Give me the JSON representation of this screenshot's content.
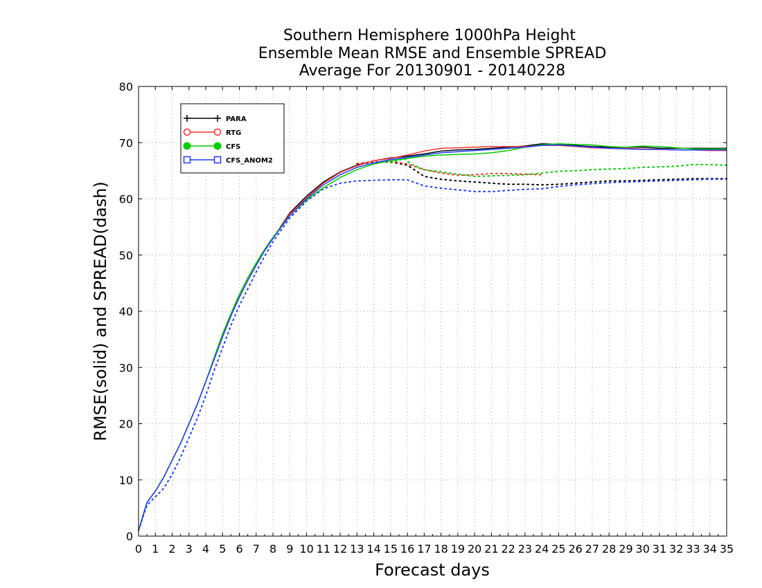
{
  "chart_data": {
    "type": "line",
    "title_lines": [
      "Southern Hemisphere 1000hPa Height",
      "Ensemble Mean RMSE and Ensemble SPREAD",
      "Average For 20130901 - 20140228"
    ],
    "xlabel": "Forecast days",
    "ylabel": "RMSE(solid) and SPREAD(dash)",
    "xlim": [
      0,
      35
    ],
    "ylim": [
      0,
      80
    ],
    "x_ticks": [
      "0",
      "1",
      "2",
      "3",
      "4",
      "5",
      "6",
      "7",
      "8",
      "9",
      "10",
      "11",
      "12",
      "13",
      "14",
      "15",
      "16",
      "17",
      "18",
      "19",
      "20",
      "21",
      "22",
      "23",
      "24",
      "25",
      "26",
      "27",
      "28",
      "29",
      "30",
      "31",
      "32",
      "33",
      "34",
      "35"
    ],
    "y_ticks": [
      "0",
      "10",
      "20",
      "30",
      "40",
      "50",
      "60",
      "70",
      "80"
    ],
    "grid": true,
    "legend_position": "top-left",
    "series": [
      {
        "name": "PARA",
        "color": "#000000",
        "marker": "plus",
        "rmse": [
          [
            0,
            1
          ],
          [
            0.5,
            6
          ],
          [
            1,
            8
          ],
          [
            1.5,
            10.5
          ],
          [
            2,
            13.5
          ],
          [
            2.5,
            16.5
          ],
          [
            3,
            20
          ],
          [
            3.5,
            23.5
          ],
          [
            4,
            27.5
          ],
          [
            4.5,
            31.5
          ],
          [
            5,
            35.5
          ],
          [
            5.5,
            39.2
          ],
          [
            6,
            42.5
          ],
          [
            6.5,
            45.5
          ],
          [
            7,
            48.2
          ],
          [
            7.5,
            50.8
          ],
          [
            8,
            53
          ],
          [
            9,
            57.5
          ],
          [
            10,
            60.5
          ],
          [
            11,
            63
          ],
          [
            12,
            64.8
          ],
          [
            13,
            66
          ],
          [
            14,
            66.8
          ],
          [
            15,
            67.3
          ],
          [
            16,
            67.6
          ],
          [
            17,
            68
          ],
          [
            18,
            68.5
          ],
          [
            19,
            68.7
          ],
          [
            20,
            68.8
          ],
          [
            21,
            69
          ],
          [
            22,
            69.2
          ],
          [
            23,
            69.4
          ],
          [
            24,
            69.8
          ],
          [
            25,
            69.7
          ],
          [
            26,
            69.5
          ],
          [
            27,
            69.3
          ],
          [
            28,
            69.2
          ],
          [
            29,
            69.2
          ],
          [
            30,
            69.2
          ],
          [
            31,
            69
          ],
          [
            32,
            69
          ],
          [
            33,
            69
          ],
          [
            34,
            69
          ],
          [
            35,
            69
          ]
        ],
        "spread": [
          [
            13,
            66.2
          ],
          [
            14,
            66.5
          ],
          [
            15,
            66.6
          ],
          [
            16,
            66
          ],
          [
            17,
            64
          ],
          [
            18,
            63.5
          ],
          [
            19,
            63.2
          ],
          [
            20,
            63
          ],
          [
            21,
            62.8
          ],
          [
            22,
            62.6
          ],
          [
            23,
            62.6
          ],
          [
            24,
            62.5
          ],
          [
            25,
            62.6
          ],
          [
            26,
            62.8
          ],
          [
            27,
            63
          ],
          [
            28,
            63.2
          ],
          [
            29,
            63.2
          ],
          [
            30,
            63.3
          ],
          [
            31,
            63.4
          ],
          [
            32,
            63.5
          ],
          [
            33,
            63.6
          ],
          [
            34,
            63.6
          ],
          [
            35,
            63.6
          ]
        ]
      },
      {
        "name": "RTG",
        "color": "#ff3030",
        "marker": "open-circle",
        "rmse": [
          [
            0,
            1
          ],
          [
            0.5,
            6
          ],
          [
            1,
            8
          ],
          [
            1.5,
            10.5
          ],
          [
            2,
            13.5
          ],
          [
            2.5,
            16.5
          ],
          [
            3,
            20
          ],
          [
            3.5,
            23.5
          ],
          [
            4,
            27.5
          ],
          [
            4.5,
            31.5
          ],
          [
            5,
            35.5
          ],
          [
            5.5,
            39.2
          ],
          [
            6,
            42.5
          ],
          [
            6.5,
            45.5
          ],
          [
            7,
            48.2
          ],
          [
            7.5,
            50.8
          ],
          [
            8,
            53
          ],
          [
            9,
            57.3
          ],
          [
            10,
            60.2
          ],
          [
            11,
            62.8
          ],
          [
            12,
            64.7
          ],
          [
            13,
            65.9
          ],
          [
            14,
            66.8
          ],
          [
            15,
            67.2
          ],
          [
            16,
            67.8
          ],
          [
            17,
            68.5
          ],
          [
            18,
            69
          ],
          [
            19,
            69.1
          ],
          [
            20,
            69.2
          ],
          [
            21,
            69.3
          ],
          [
            22,
            69.3
          ],
          [
            23,
            69.3
          ],
          [
            24,
            69.5
          ],
          [
            25,
            69.5
          ],
          [
            26,
            69.3
          ],
          [
            27,
            69.1
          ],
          [
            28,
            69
          ],
          [
            29,
            69
          ],
          [
            30,
            68.9
          ],
          [
            31,
            68.8
          ],
          [
            32,
            68.7
          ],
          [
            33,
            68.7
          ],
          [
            34,
            68.6
          ],
          [
            35,
            68.6
          ]
        ],
        "spread": [
          [
            13,
            66.3
          ],
          [
            14,
            66.6
          ],
          [
            15,
            66.7
          ],
          [
            16,
            66.2
          ],
          [
            17,
            65.2
          ],
          [
            18,
            64.6
          ],
          [
            19,
            64.2
          ],
          [
            20,
            64.3
          ],
          [
            21,
            64.5
          ],
          [
            22,
            64.5
          ],
          [
            23,
            64.4
          ],
          [
            24,
            64.3
          ]
        ]
      },
      {
        "name": "CFS",
        "color": "#00cc00",
        "marker": "filled-circle",
        "rmse": [
          [
            0,
            1
          ],
          [
            0.5,
            6
          ],
          [
            1,
            8
          ],
          [
            1.5,
            10.5
          ],
          [
            2,
            13.5
          ],
          [
            2.5,
            16.5
          ],
          [
            3,
            20
          ],
          [
            3.5,
            23.5
          ],
          [
            4,
            27.5
          ],
          [
            4.5,
            31.8
          ],
          [
            5,
            36
          ],
          [
            5.5,
            39.6
          ],
          [
            6,
            43
          ],
          [
            6.5,
            46
          ],
          [
            7,
            48.6
          ],
          [
            7.5,
            51
          ],
          [
            8,
            53.2
          ],
          [
            9,
            57
          ],
          [
            10,
            59.8
          ],
          [
            11,
            62
          ],
          [
            12,
            63.8
          ],
          [
            13,
            65.2
          ],
          [
            14,
            66.2
          ],
          [
            15,
            66.8
          ],
          [
            16,
            67.2
          ],
          [
            17,
            67.6
          ],
          [
            18,
            67.8
          ],
          [
            19,
            67.9
          ],
          [
            20,
            68
          ],
          [
            21,
            68.2
          ],
          [
            22,
            68.6
          ],
          [
            23,
            69.2
          ],
          [
            24,
            69.6
          ],
          [
            25,
            69.8
          ],
          [
            26,
            69.7
          ],
          [
            27,
            69.6
          ],
          [
            28,
            69.3
          ],
          [
            29,
            69.2
          ],
          [
            30,
            69.4
          ],
          [
            31,
            69.3
          ],
          [
            32,
            69.1
          ],
          [
            33,
            68.9
          ],
          [
            34,
            68.9
          ],
          [
            35,
            68.9
          ]
        ],
        "spread": [
          [
            15,
            66.4
          ],
          [
            15.8,
            67.2
          ],
          [
            16.2,
            66.2
          ],
          [
            17,
            65.2
          ],
          [
            18,
            64.8
          ],
          [
            19,
            64.4
          ],
          [
            20,
            64
          ],
          [
            21,
            64.1
          ],
          [
            22,
            64.2
          ],
          [
            23,
            64.3
          ],
          [
            24,
            64.6
          ],
          [
            25,
            64.9
          ],
          [
            26,
            65
          ],
          [
            27,
            65.2
          ],
          [
            28,
            65.3
          ],
          [
            29,
            65.4
          ],
          [
            30,
            65.6
          ],
          [
            31,
            65.7
          ],
          [
            32,
            65.8
          ],
          [
            33,
            66.1
          ],
          [
            34,
            66.1
          ],
          [
            35,
            66
          ]
        ]
      },
      {
        "name": "CFS_ANOM2",
        "color": "#1f3fff",
        "marker": "open-square",
        "rmse": [
          [
            0,
            1
          ],
          [
            0.5,
            6
          ],
          [
            1,
            8
          ],
          [
            1.5,
            10.5
          ],
          [
            2,
            13.5
          ],
          [
            2.5,
            16.5
          ],
          [
            3,
            20
          ],
          [
            3.5,
            23.5
          ],
          [
            4,
            27.5
          ],
          [
            4.5,
            31.5
          ],
          [
            5,
            35.5
          ],
          [
            5.5,
            39.2
          ],
          [
            6,
            42.5
          ],
          [
            6.5,
            45.5
          ],
          [
            7,
            48.2
          ],
          [
            7.5,
            50.8
          ],
          [
            8,
            53
          ],
          [
            9,
            57
          ],
          [
            10,
            60
          ],
          [
            11,
            62.5
          ],
          [
            12,
            64.3
          ],
          [
            13,
            65.6
          ],
          [
            14,
            66.4
          ],
          [
            15,
            67
          ],
          [
            16,
            67.4
          ],
          [
            17,
            67.8
          ],
          [
            18,
            68.2
          ],
          [
            19,
            68.4
          ],
          [
            20,
            68.6
          ],
          [
            21,
            68.8
          ],
          [
            22,
            69
          ],
          [
            23,
            69.2
          ],
          [
            24,
            69.5
          ],
          [
            25,
            69.6
          ],
          [
            26,
            69.4
          ],
          [
            27,
            69.2
          ],
          [
            28,
            69
          ],
          [
            29,
            68.9
          ],
          [
            30,
            68.8
          ],
          [
            31,
            68.8
          ],
          [
            32,
            68.7
          ],
          [
            33,
            68.7
          ],
          [
            34,
            68.7
          ],
          [
            35,
            68.7
          ]
        ],
        "spread": [
          [
            0,
            1
          ],
          [
            0.5,
            5.5
          ],
          [
            1,
            7
          ],
          [
            1.5,
            8.5
          ],
          [
            2,
            11
          ],
          [
            2.5,
            14
          ],
          [
            3,
            17.5
          ],
          [
            3.5,
            21
          ],
          [
            4,
            25
          ],
          [
            4.5,
            29.5
          ],
          [
            5,
            33.5
          ],
          [
            5.5,
            37.5
          ],
          [
            6,
            41
          ],
          [
            6.5,
            44
          ],
          [
            7,
            47
          ],
          [
            7.5,
            49.8
          ],
          [
            8,
            52.4
          ],
          [
            9,
            56.6
          ],
          [
            10,
            59.6
          ],
          [
            11,
            61.8
          ],
          [
            12,
            62.8
          ],
          [
            13,
            63.2
          ],
          [
            14,
            63.3
          ],
          [
            15,
            63.4
          ],
          [
            16,
            63.4
          ],
          [
            17,
            62.3
          ],
          [
            18,
            61.9
          ],
          [
            19,
            61.6
          ],
          [
            20,
            61.3
          ],
          [
            21,
            61.3
          ],
          [
            22,
            61.5
          ],
          [
            23,
            61.7
          ],
          [
            24,
            61.8
          ],
          [
            25,
            62.2
          ],
          [
            26,
            62.5
          ],
          [
            27,
            62.7
          ],
          [
            28,
            62.9
          ],
          [
            29,
            63
          ],
          [
            30,
            63.1
          ],
          [
            31,
            63.2
          ],
          [
            32,
            63.3
          ],
          [
            33,
            63.4
          ],
          [
            34,
            63.5
          ],
          [
            35,
            63.5
          ]
        ]
      }
    ]
  }
}
